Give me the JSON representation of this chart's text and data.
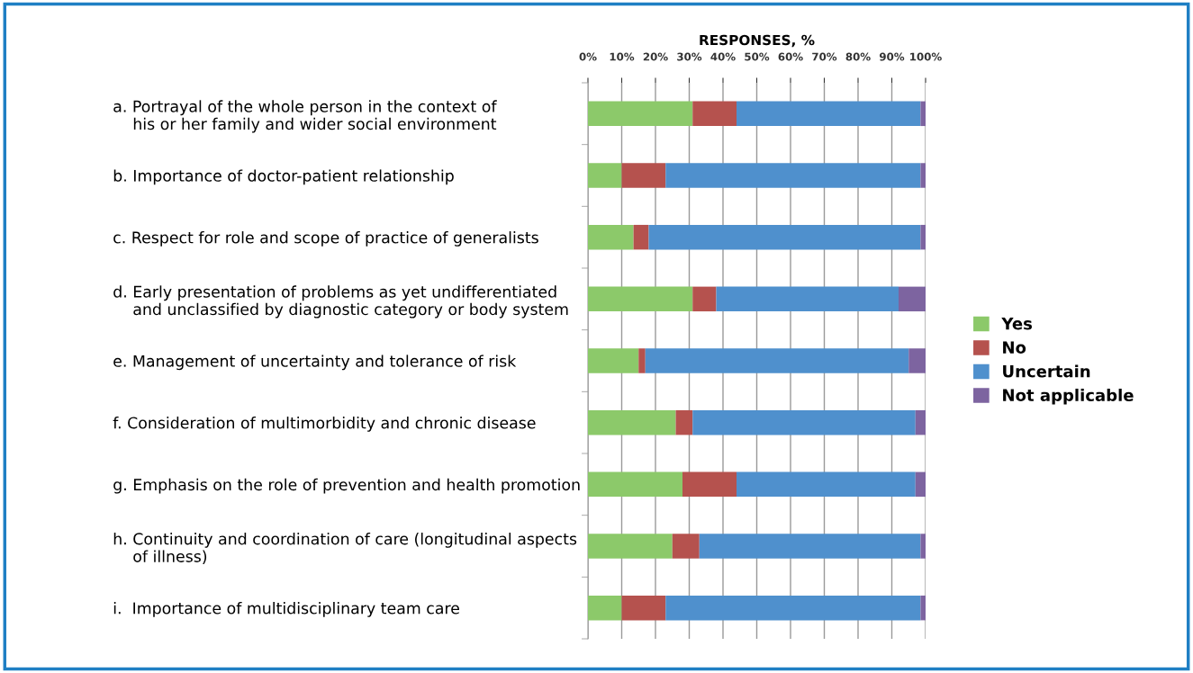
{
  "chart_data": {
    "type": "bar",
    "orientation": "horizontal",
    "stacked": true,
    "xlabel": "RESPONSES, %",
    "categories": [
      "a. Portrayal of the whole person in the context of\n    his or her family and wider social environment",
      "b. Importance of doctor-patient relationship",
      "c. Respect for role and scope of practice of generalists",
      "d. Early presentation of problems as yet undifferentiated\n    and unclassified by diagnostic category or body system",
      "e. Management of uncertainty and tolerance of risk",
      "f. Consideration of multimorbidity and chronic disease",
      "g. Emphasis on the role of prevention and health promotion",
      "h. Continuity and coordination of care (longitudinal aspects\n    of illness)",
      "i.  Importance of multidisciplinary team care"
    ],
    "series": [
      {
        "name": "Yes",
        "color": "#8cc96a",
        "values": [
          31,
          10,
          13.5,
          31,
          15,
          26,
          28,
          25,
          10
        ]
      },
      {
        "name": "No",
        "color": "#b5524e",
        "values": [
          13,
          13,
          4.5,
          7,
          2,
          5,
          16,
          8,
          13
        ]
      },
      {
        "name": "Uncertain",
        "color": "#4f90cd",
        "values": [
          54.5,
          75.5,
          80.5,
          54,
          78,
          66,
          53,
          65.5,
          75.5
        ]
      },
      {
        "name": "Not applicable",
        "color": "#7d64a0",
        "values": [
          1.5,
          1.5,
          1.5,
          8,
          5,
          3,
          3,
          1.5,
          1.5
        ]
      }
    ],
    "xlim": [
      0,
      100
    ],
    "xticks": [
      {
        "value": 0,
        "label": "0%"
      },
      {
        "value": 10,
        "label": "10%"
      },
      {
        "value": 20,
        "label": "20%"
      },
      {
        "value": 30,
        "label": "30%"
      },
      {
        "value": 40,
        "label": "40%"
      },
      {
        "value": 50,
        "label": "50%"
      },
      {
        "value": 60,
        "label": "60%"
      },
      {
        "value": 70,
        "label": "70%"
      },
      {
        "value": 80,
        "label": "80%"
      },
      {
        "value": 90,
        "label": "90%"
      },
      {
        "value": 100,
        "label": "100%"
      }
    ],
    "grid": "x",
    "legend": "right"
  }
}
